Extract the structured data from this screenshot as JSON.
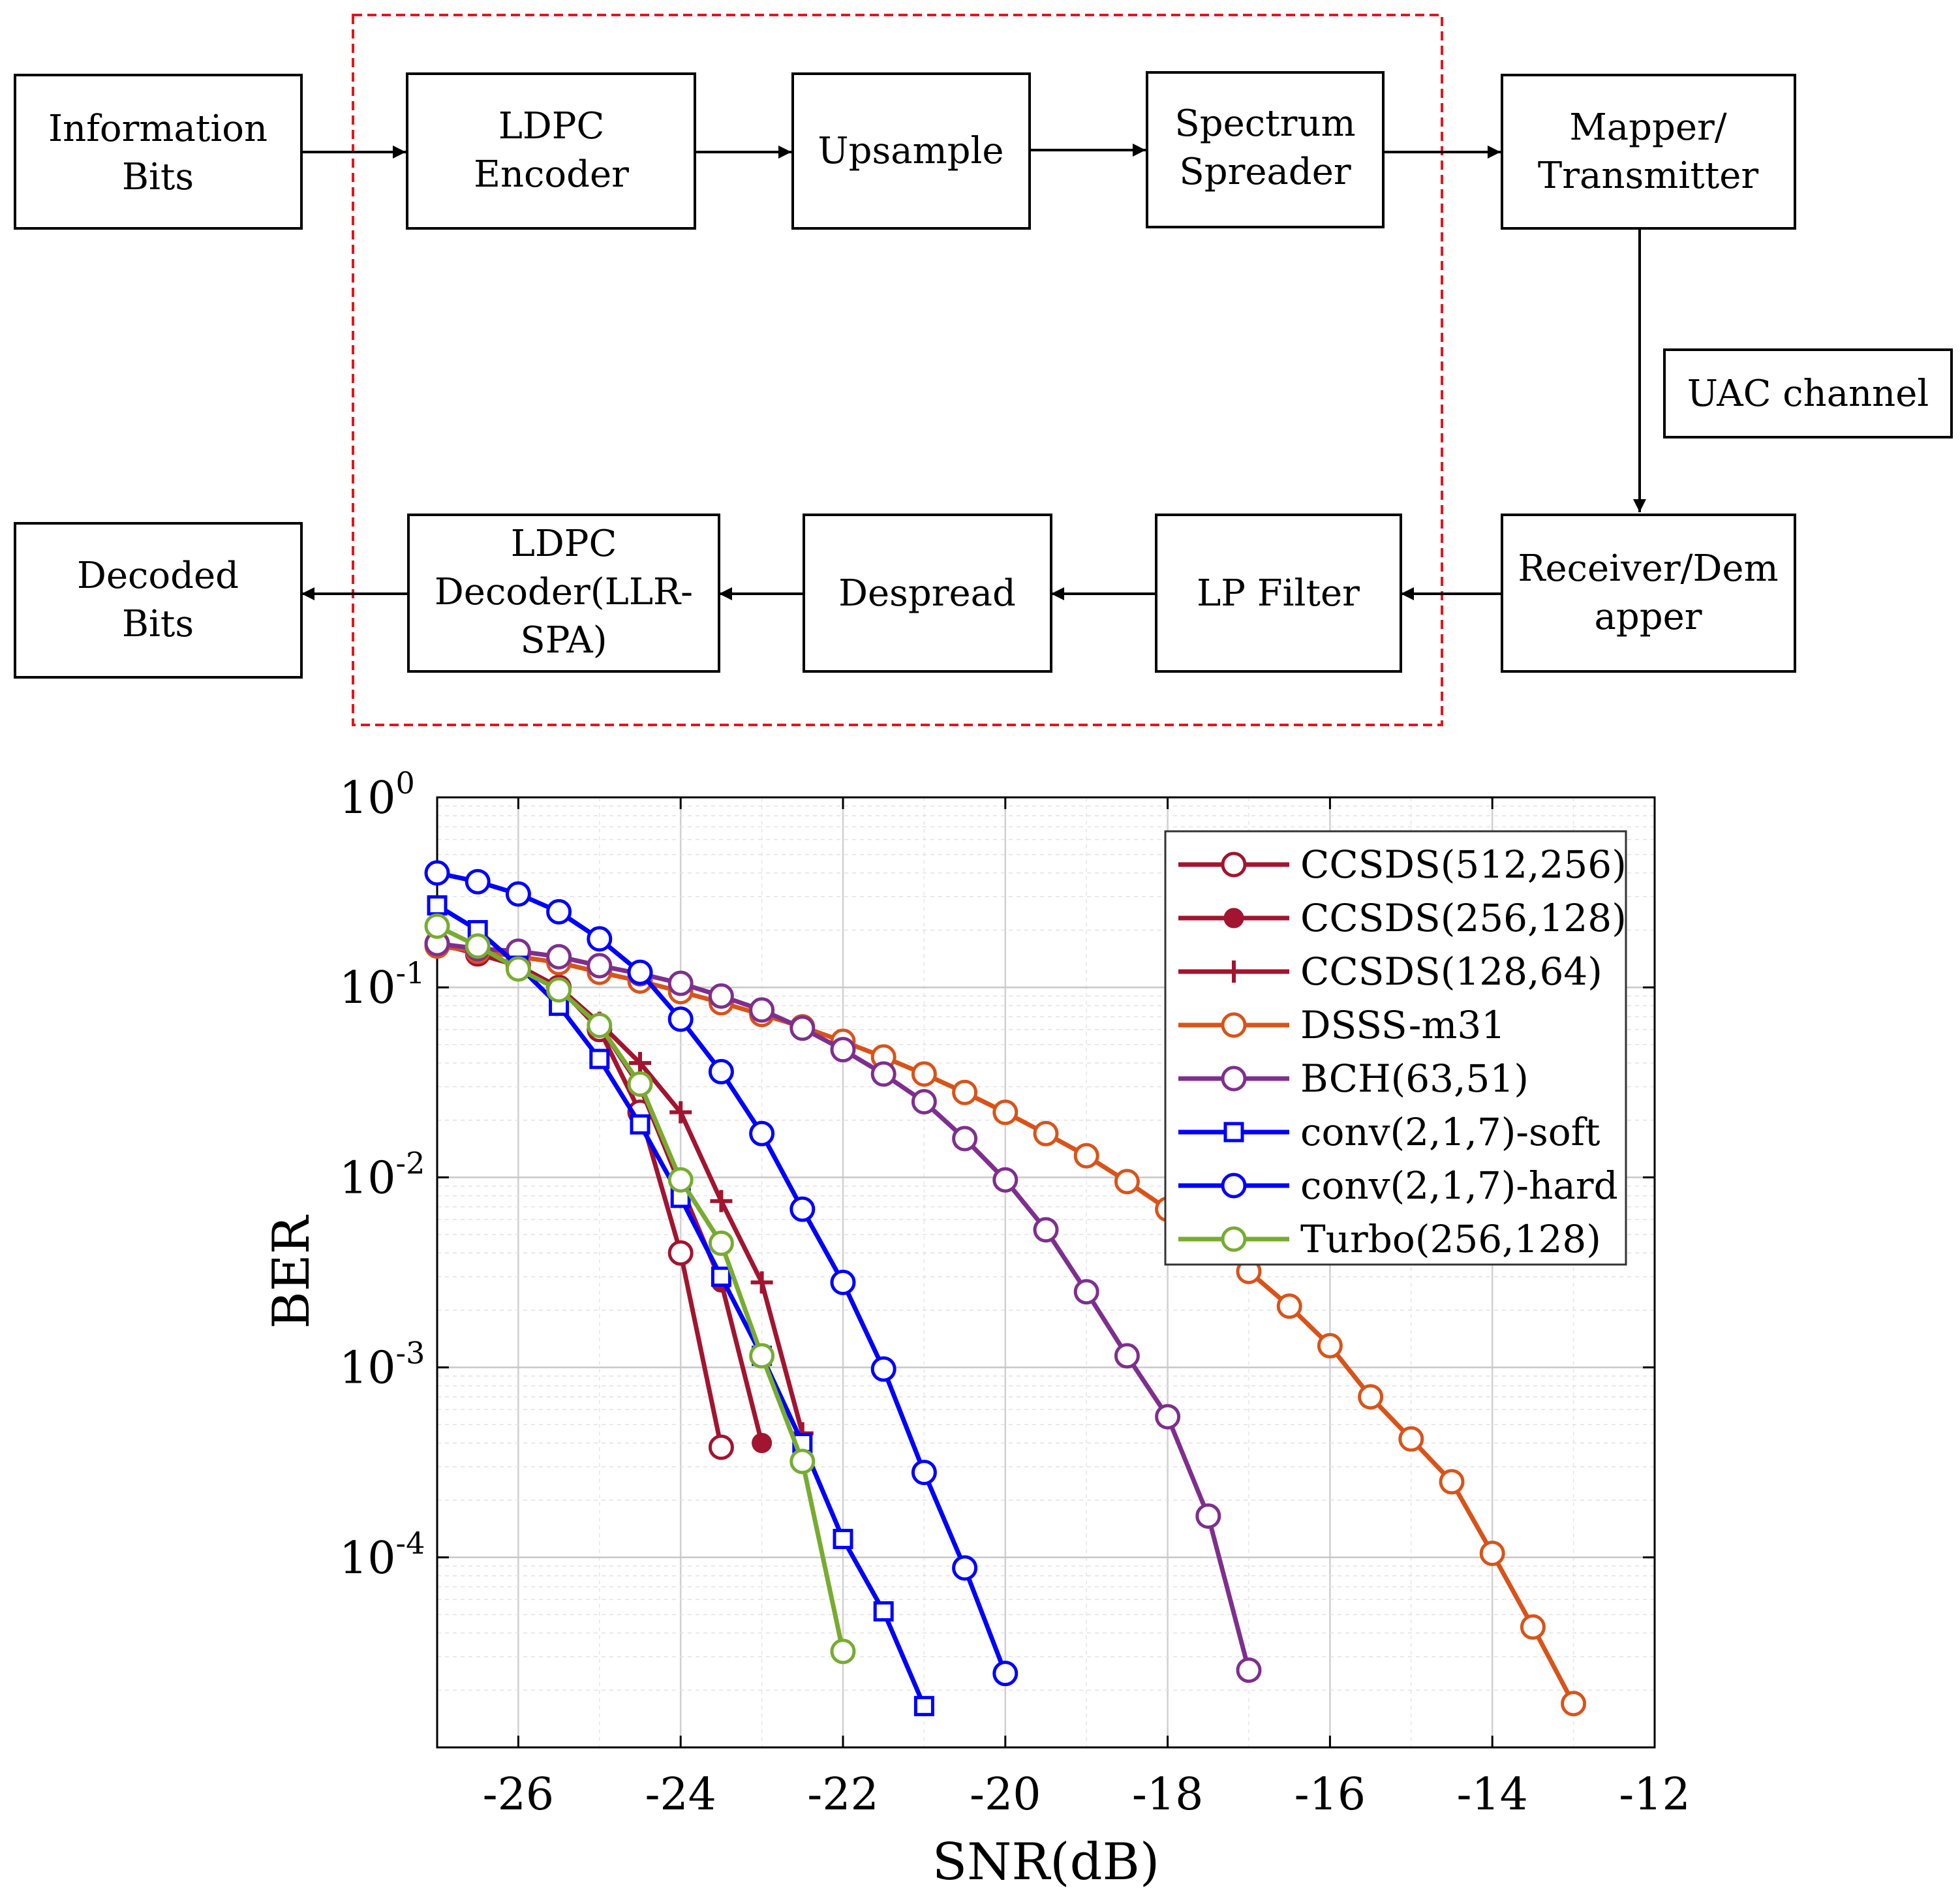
{
  "diagram": {
    "blocks": [
      {
        "id": "info",
        "lines": [
          "Information",
          "Bits"
        ]
      },
      {
        "id": "enc",
        "lines": [
          "LDPC",
          "Encoder"
        ]
      },
      {
        "id": "ups",
        "lines": [
          "Upsample"
        ]
      },
      {
        "id": "spr",
        "lines": [
          "Spectrum",
          "Spreader"
        ]
      },
      {
        "id": "map",
        "lines": [
          "Mapper/",
          "Transmitter"
        ]
      },
      {
        "id": "uac",
        "lines": [
          "UAC channel"
        ]
      },
      {
        "id": "dec_bits",
        "lines": [
          "Decoded",
          "Bits"
        ]
      },
      {
        "id": "dec",
        "lines": [
          "LDPC",
          "Decoder(LLR-",
          "SPA)"
        ]
      },
      {
        "id": "desp",
        "lines": [
          "Despread"
        ]
      },
      {
        "id": "lpf",
        "lines": [
          "LP Filter"
        ]
      },
      {
        "id": "recv",
        "lines": [
          "Receiver/Dem",
          "apper"
        ]
      }
    ],
    "highlight_color": "#e8141c"
  },
  "chart_data": {
    "type": "line",
    "xlabel": "SNR(dB)",
    "ylabel": "BER",
    "xlim": [
      -27,
      -12
    ],
    "ylim_log10": [
      -5,
      0
    ],
    "yscale": "log",
    "grid": true,
    "legend_position": "top-right",
    "x_ticks": [
      -26,
      -24,
      -22,
      -20,
      -18,
      -16,
      -14,
      -12
    ],
    "x_tick_labels": [
      "-26",
      "-24",
      "-22",
      "-20",
      "-18",
      "-16",
      "-14",
      "-12"
    ],
    "y_ticks": [
      {
        "base": "10",
        "exp": "0"
      },
      {
        "base": "10",
        "exp": "-1"
      },
      {
        "base": "10",
        "exp": "-2"
      },
      {
        "base": "10",
        "exp": "-3"
      },
      {
        "base": "10",
        "exp": "-4"
      }
    ],
    "series": [
      {
        "name": "CCSDS(512,256)",
        "color": "#a2142f",
        "marker": "circle-open",
        "x": [
          -27,
          -26.5,
          -26,
          -25.5,
          -25,
          -24.5,
          -24,
          -23.5
        ],
        "y": [
          0.17,
          0.15,
          0.13,
          0.1,
          0.06,
          0.022,
          0.004,
          0.00038
        ]
      },
      {
        "name": "CCSDS(256,128)",
        "color": "#a2142f",
        "marker": "circle-filled",
        "x": [
          -27,
          -26.5,
          -26,
          -25.5,
          -25,
          -24.5,
          -24,
          -23.5,
          -23
        ],
        "y": [
          0.17,
          0.15,
          0.13,
          0.1,
          0.063,
          0.03,
          0.009,
          0.0028,
          0.0004
        ]
      },
      {
        "name": "CCSDS(128,64)",
        "color": "#a2142f",
        "marker": "plus",
        "x": [
          -27,
          -26.5,
          -26,
          -25.5,
          -25,
          -24.5,
          -24,
          -23.5,
          -23,
          -22.5
        ],
        "y": [
          0.17,
          0.15,
          0.13,
          0.1,
          0.065,
          0.04,
          0.022,
          0.0075,
          0.0028,
          0.00045
        ]
      },
      {
        "name": "DSSS-m31",
        "color": "#d95319",
        "marker": "circle-open",
        "x": [
          -27,
          -26.5,
          -26,
          -25.5,
          -25,
          -24.5,
          -24,
          -23.5,
          -23,
          -22.5,
          -22,
          -21.5,
          -21,
          -20.5,
          -20,
          -19.5,
          -19,
          -18.5,
          -18,
          -17.5,
          -17,
          -16.5,
          -16,
          -15.5,
          -15,
          -14.5,
          -14,
          -13.5,
          -13
        ],
        "y": [
          0.165,
          0.155,
          0.145,
          0.135,
          0.12,
          0.108,
          0.095,
          0.083,
          0.072,
          0.062,
          0.052,
          0.043,
          0.035,
          0.028,
          0.022,
          0.017,
          0.013,
          0.0095,
          0.0068,
          0.0047,
          0.0032,
          0.0021,
          0.0013,
          0.0007,
          0.00042,
          0.00025,
          0.000105,
          4.3e-05,
          1.7e-05
        ]
      },
      {
        "name": "BCH(63,51)",
        "color": "#7e2f8e",
        "marker": "circle-open",
        "x": [
          -27,
          -26.5,
          -26,
          -25.5,
          -25,
          -24.5,
          -24,
          -23.5,
          -23,
          -22.5,
          -22,
          -21.5,
          -21,
          -20.5,
          -20,
          -19.5,
          -19,
          -18.5,
          -18,
          -17.5,
          -17
        ],
        "y": [
          0.17,
          0.16,
          0.155,
          0.145,
          0.13,
          0.118,
          0.105,
          0.09,
          0.076,
          0.061,
          0.047,
          0.035,
          0.025,
          0.016,
          0.0097,
          0.0053,
          0.0025,
          0.00115,
          0.00055,
          0.000165,
          2.55e-05
        ]
      },
      {
        "name": "conv(2,1,7)-soft",
        "color": "#0000ff",
        "marker": "square-open",
        "x": [
          -27,
          -26.5,
          -26,
          -25.5,
          -25,
          -24.5,
          -24,
          -23.5,
          -23,
          -22.5,
          -22,
          -21.5,
          -21
        ],
        "y": [
          0.27,
          0.2,
          0.13,
          0.08,
          0.042,
          0.019,
          0.0078,
          0.003,
          0.00115,
          0.0004,
          0.000125,
          5.2e-05,
          1.65e-05
        ]
      },
      {
        "name": "conv(2,1,7)-hard",
        "color": "#0000ff",
        "marker": "circle-open",
        "x": [
          -27,
          -26.5,
          -26,
          -25.5,
          -25,
          -24.5,
          -24,
          -23.5,
          -23,
          -22.5,
          -22,
          -21.5,
          -21,
          -20.5,
          -20
        ],
        "y": [
          0.4,
          0.36,
          0.31,
          0.25,
          0.18,
          0.12,
          0.068,
          0.036,
          0.017,
          0.0068,
          0.0028,
          0.00098,
          0.00028,
          8.8e-05,
          2.45e-05
        ]
      },
      {
        "name": "Turbo(256,128)",
        "color": "#77ac30",
        "marker": "circle-open",
        "x": [
          -27,
          -26.5,
          -26,
          -25.5,
          -25,
          -24.5,
          -24,
          -23.5,
          -23,
          -22.5,
          -22
        ],
        "y": [
          0.21,
          0.165,
          0.125,
          0.097,
          0.063,
          0.031,
          0.0097,
          0.0045,
          0.00115,
          0.00032,
          3.2e-05
        ]
      }
    ]
  }
}
